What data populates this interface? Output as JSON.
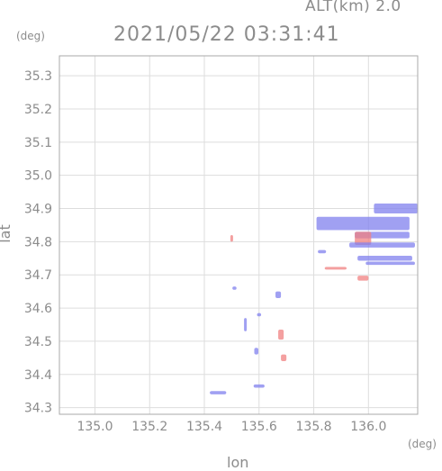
{
  "header": {
    "altitude_label": "ALT(km) 2.0",
    "timestamp": "2021/05/22 03:31:41"
  },
  "axes": {
    "y_unit": "(deg)",
    "x_unit": "(deg)",
    "x_title": "lon",
    "y_title": "lat",
    "x_ticks": [
      "135.0",
      "135.2",
      "135.4",
      "135.6",
      "135.8",
      "136.0"
    ],
    "y_ticks": [
      "34.3",
      "34.4",
      "34.5",
      "34.6",
      "34.7",
      "34.8",
      "34.9",
      "35.0",
      "35.1",
      "35.2",
      "35.3"
    ]
  },
  "map_data": {
    "type": "scatter",
    "xlim": [
      134.87,
      136.18
    ],
    "ylim": [
      34.28,
      35.36
    ],
    "grid": true,
    "colors": {
      "frame": "#aaaaaa",
      "grid": "#dddddd",
      "positive": "#f08080",
      "negative": "#8080ee"
    },
    "features": [
      {
        "lon": 135.98,
        "lat": 34.855,
        "w": 0.34,
        "h": 0.04,
        "sign": "neg"
      },
      {
        "lon": 136.1,
        "lat": 34.9,
        "w": 0.16,
        "h": 0.03,
        "sign": "neg"
      },
      {
        "lon": 136.05,
        "lat": 34.82,
        "w": 0.2,
        "h": 0.02,
        "sign": "neg"
      },
      {
        "lon": 135.98,
        "lat": 34.81,
        "w": 0.06,
        "h": 0.04,
        "sign": "pos"
      },
      {
        "lon": 136.05,
        "lat": 34.79,
        "w": 0.24,
        "h": 0.015,
        "sign": "neg"
      },
      {
        "lon": 136.06,
        "lat": 34.75,
        "w": 0.2,
        "h": 0.015,
        "sign": "neg"
      },
      {
        "lon": 136.08,
        "lat": 34.735,
        "w": 0.18,
        "h": 0.01,
        "sign": "neg"
      },
      {
        "lon": 135.88,
        "lat": 34.72,
        "w": 0.08,
        "h": 0.008,
        "sign": "pos"
      },
      {
        "lon": 135.83,
        "lat": 34.77,
        "w": 0.03,
        "h": 0.01,
        "sign": "neg"
      },
      {
        "lon": 135.98,
        "lat": 34.69,
        "w": 0.04,
        "h": 0.015,
        "sign": "pos"
      },
      {
        "lon": 135.5,
        "lat": 34.81,
        "w": 0.01,
        "h": 0.02,
        "sign": "pos"
      },
      {
        "lon": 135.51,
        "lat": 34.66,
        "w": 0.015,
        "h": 0.01,
        "sign": "neg"
      },
      {
        "lon": 135.67,
        "lat": 34.64,
        "w": 0.02,
        "h": 0.02,
        "sign": "neg"
      },
      {
        "lon": 135.6,
        "lat": 34.58,
        "w": 0.015,
        "h": 0.01,
        "sign": "neg"
      },
      {
        "lon": 135.55,
        "lat": 34.55,
        "w": 0.01,
        "h": 0.04,
        "sign": "neg"
      },
      {
        "lon": 135.68,
        "lat": 34.52,
        "w": 0.02,
        "h": 0.03,
        "sign": "pos"
      },
      {
        "lon": 135.69,
        "lat": 34.45,
        "w": 0.02,
        "h": 0.02,
        "sign": "pos"
      },
      {
        "lon": 135.59,
        "lat": 34.47,
        "w": 0.015,
        "h": 0.02,
        "sign": "neg"
      },
      {
        "lon": 135.45,
        "lat": 34.345,
        "w": 0.06,
        "h": 0.01,
        "sign": "neg"
      },
      {
        "lon": 135.6,
        "lat": 34.365,
        "w": 0.04,
        "h": 0.01,
        "sign": "neg"
      }
    ]
  }
}
